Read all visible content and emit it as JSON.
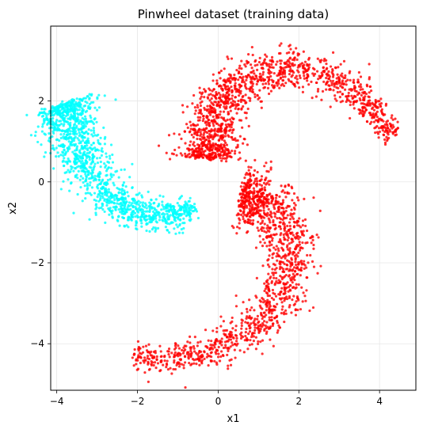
{
  "chart_data": {
    "type": "scatter",
    "title": "Pinwheel dataset (training data)",
    "xlabel": "x1",
    "ylabel": "x2",
    "xlim": [
      -4.15,
      4.9
    ],
    "ylim": [
      -5.15,
      3.85
    ],
    "xticks": [
      -4,
      -2,
      0,
      2,
      4
    ],
    "yticks": [
      -4,
      -2,
      0,
      2
    ],
    "xtick_labels": [
      "−4",
      "−2",
      "0",
      "2",
      "4"
    ],
    "ytick_labels": [
      "−4",
      "−2",
      "0",
      "2"
    ],
    "grid": true,
    "series": [
      {
        "color": "#00ffff",
        "arm_centerline": [
          {
            "x": -3.85,
            "y": 1.9
          },
          {
            "x": -3.6,
            "y": 1.2
          },
          {
            "x": -3.3,
            "y": 0.4
          },
          {
            "x": -2.9,
            "y": -0.2
          },
          {
            "x": -2.4,
            "y": -0.6
          },
          {
            "x": -1.8,
            "y": -0.85
          },
          {
            "x": -1.2,
            "y": -0.85
          },
          {
            "x": -0.6,
            "y": -0.65
          }
        ]
      },
      {
        "color": "#ff0000",
        "arm_centerline": [
          {
            "x": -0.25,
            "y": 0.6
          },
          {
            "x": -0.2,
            "y": 1.4
          },
          {
            "x": 0.2,
            "y": 2.1
          },
          {
            "x": 0.8,
            "y": 2.55
          },
          {
            "x": 1.5,
            "y": 2.8
          },
          {
            "x": 2.3,
            "y": 2.8
          },
          {
            "x": 3.0,
            "y": 2.5
          },
          {
            "x": 3.7,
            "y": 2.0
          },
          {
            "x": 4.3,
            "y": 1.1
          }
        ]
      },
      {
        "color": "#ff0000",
        "arm_centerline": [
          {
            "x": 0.6,
            "y": -0.3
          },
          {
            "x": 1.2,
            "y": -0.4
          },
          {
            "x": 1.6,
            "y": -1.0
          },
          {
            "x": 1.8,
            "y": -1.8
          },
          {
            "x": 1.75,
            "y": -2.5
          },
          {
            "x": 1.4,
            "y": -3.2
          },
          {
            "x": 0.9,
            "y": -3.6
          },
          {
            "x": 0.3,
            "y": -4.0
          },
          {
            "x": -0.5,
            "y": -4.25
          },
          {
            "x": -1.6,
            "y": -4.4
          },
          {
            "x": -2.1,
            "y": -4.3
          }
        ]
      }
    ]
  }
}
